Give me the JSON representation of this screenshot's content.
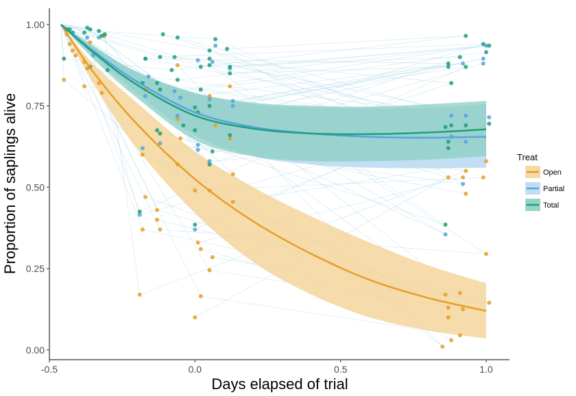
{
  "chart_data": {
    "type": "scatter",
    "title": "",
    "xlabel": "Days elapsed of trial",
    "ylabel": "Proportion of saplings alive",
    "xlim": [
      -0.5,
      1.08
    ],
    "ylim": [
      -0.03,
      1.05
    ],
    "x_ticks": [
      -0.5,
      0.0,
      0.5,
      1.0
    ],
    "x_tick_labels": [
      "-0.5",
      "0.0",
      "0.5",
      "1.0"
    ],
    "y_ticks": [
      0.0,
      0.25,
      0.5,
      0.75,
      1.0
    ],
    "y_tick_labels": [
      "0.00",
      "0.25",
      "0.50",
      "0.75",
      "1.00"
    ],
    "grid": false,
    "legend": {
      "title": "Treat",
      "position": "right",
      "entries": [
        "Open",
        "Partial",
        "Total"
      ]
    },
    "colors": {
      "Open": "#E69F25",
      "Partial": "#56A3E0",
      "Total": "#1E9E7A",
      "Open_band": "#F5D59C",
      "Partial_band": "#B9D9F2",
      "Total_band": "#8CCFC2",
      "trajectory": "#B7DCEB"
    },
    "series": [
      {
        "name": "Open",
        "fit_x": [
          -0.46,
          -0.35,
          -0.2,
          0.0,
          0.2,
          0.4,
          0.6,
          0.8,
          1.0
        ],
        "fit_y": [
          1.0,
          0.855,
          0.695,
          0.525,
          0.395,
          0.295,
          0.215,
          0.16,
          0.12
        ],
        "ci_lower": [
          1.0,
          0.82,
          0.62,
          0.42,
          0.27,
          0.17,
          0.1,
          0.06,
          0.035
        ],
        "ci_upper": [
          1.0,
          0.88,
          0.76,
          0.61,
          0.5,
          0.41,
          0.33,
          0.26,
          0.205
        ],
        "points": [
          {
            "x": -0.44,
            "y": 0.97
          },
          {
            "x": -0.43,
            "y": 0.94
          },
          {
            "x": -0.42,
            "y": 0.92
          },
          {
            "x": -0.41,
            "y": 0.905
          },
          {
            "x": -0.45,
            "y": 0.83
          },
          {
            "x": -0.38,
            "y": 0.885
          },
          {
            "x": -0.37,
            "y": 0.865
          },
          {
            "x": -0.38,
            "y": 0.81
          },
          {
            "x": -0.36,
            "y": 0.945
          },
          {
            "x": -0.33,
            "y": 0.82
          },
          {
            "x": -0.32,
            "y": 0.79
          },
          {
            "x": -0.31,
            "y": 0.965
          },
          {
            "x": -0.17,
            "y": 0.8
          },
          {
            "x": -0.18,
            "y": 0.6
          },
          {
            "x": -0.17,
            "y": 0.47
          },
          {
            "x": -0.18,
            "y": 0.37
          },
          {
            "x": -0.13,
            "y": 0.43
          },
          {
            "x": -0.13,
            "y": 0.4
          },
          {
            "x": -0.12,
            "y": 0.37
          },
          {
            "x": -0.19,
            "y": 0.17
          },
          {
            "x": -0.06,
            "y": 0.875
          },
          {
            "x": -0.06,
            "y": 0.71
          },
          {
            "x": -0.05,
            "y": 0.65
          },
          {
            "x": -0.06,
            "y": 0.57
          },
          {
            "x": 0.0,
            "y": 0.49
          },
          {
            "x": 0.01,
            "y": 0.33
          },
          {
            "x": 0.02,
            "y": 0.31
          },
          {
            "x": 0.02,
            "y": 0.165
          },
          {
            "x": 0.0,
            "y": 0.1
          },
          {
            "x": 0.05,
            "y": 0.49
          },
          {
            "x": 0.05,
            "y": 0.245
          },
          {
            "x": 0.06,
            "y": 0.285
          },
          {
            "x": 0.07,
            "y": 0.69
          },
          {
            "x": 0.05,
            "y": 0.78
          },
          {
            "x": 0.12,
            "y": 0.81
          },
          {
            "x": 0.12,
            "y": 0.65
          },
          {
            "x": 0.13,
            "y": 0.54
          },
          {
            "x": 0.13,
            "y": 0.455
          },
          {
            "x": 0.87,
            "y": 0.53
          },
          {
            "x": 0.92,
            "y": 0.53
          },
          {
            "x": 0.93,
            "y": 0.48
          },
          {
            "x": 0.93,
            "y": 0.55
          },
          {
            "x": 0.86,
            "y": 0.17
          },
          {
            "x": 0.87,
            "y": 0.13
          },
          {
            "x": 0.87,
            "y": 0.1
          },
          {
            "x": 0.88,
            "y": 0.03
          },
          {
            "x": 0.85,
            "y": 0.01
          },
          {
            "x": 0.91,
            "y": 0.175
          },
          {
            "x": 0.92,
            "y": 0.125
          },
          {
            "x": 0.91,
            "y": 0.045
          },
          {
            "x": 0.99,
            "y": 0.53
          },
          {
            "x": 1.0,
            "y": 0.58
          },
          {
            "x": 1.0,
            "y": 0.295
          },
          {
            "x": 1.01,
            "y": 0.145
          }
        ]
      },
      {
        "name": "Partial",
        "fit_x": [
          -0.46,
          -0.35,
          -0.2,
          0.0,
          0.2,
          0.4,
          0.6,
          0.8,
          1.0
        ],
        "fit_y": [
          1.0,
          0.92,
          0.825,
          0.73,
          0.685,
          0.665,
          0.655,
          0.652,
          0.655
        ],
        "ci_lower": [
          1.0,
          0.905,
          0.79,
          0.66,
          0.595,
          0.57,
          0.56,
          0.558,
          0.56
        ],
        "ci_upper": [
          1.0,
          0.935,
          0.855,
          0.79,
          0.755,
          0.745,
          0.742,
          0.745,
          0.755
        ],
        "points": [
          {
            "x": -0.44,
            "y": 0.985
          },
          {
            "x": -0.37,
            "y": 0.96
          },
          {
            "x": -0.33,
            "y": 0.96
          },
          {
            "x": -0.35,
            "y": 0.905
          },
          {
            "x": -0.17,
            "y": 0.895
          },
          {
            "x": -0.16,
            "y": 0.84
          },
          {
            "x": -0.17,
            "y": 0.78
          },
          {
            "x": -0.18,
            "y": 0.62
          },
          {
            "x": -0.19,
            "y": 0.415
          },
          {
            "x": -0.12,
            "y": 0.635
          },
          {
            "x": -0.07,
            "y": 0.795
          },
          {
            "x": -0.05,
            "y": 0.775
          },
          {
            "x": -0.06,
            "y": 0.72
          },
          {
            "x": 0.01,
            "y": 0.89
          },
          {
            "x": 0.01,
            "y": 0.63
          },
          {
            "x": 0.01,
            "y": 0.615
          },
          {
            "x": 0.0,
            "y": 0.37
          },
          {
            "x": 0.05,
            "y": 0.77
          },
          {
            "x": 0.05,
            "y": 0.58
          },
          {
            "x": 0.06,
            "y": 0.885
          },
          {
            "x": 0.07,
            "y": 0.935
          },
          {
            "x": 0.12,
            "y": 0.865
          },
          {
            "x": 0.13,
            "y": 0.765
          },
          {
            "x": 0.13,
            "y": 0.75
          },
          {
            "x": 0.86,
            "y": 0.355
          },
          {
            "x": 0.88,
            "y": 0.72
          },
          {
            "x": 0.88,
            "y": 0.655
          },
          {
            "x": 0.92,
            "y": 0.88
          },
          {
            "x": 0.92,
            "y": 0.51
          },
          {
            "x": 0.93,
            "y": 0.64
          },
          {
            "x": 0.93,
            "y": 0.72
          },
          {
            "x": 0.99,
            "y": 0.88
          },
          {
            "x": 0.99,
            "y": 0.895
          },
          {
            "x": 1.0,
            "y": 0.935
          },
          {
            "x": 1.01,
            "y": 0.715
          }
        ]
      },
      {
        "name": "Total",
        "fit_x": [
          -0.46,
          -0.35,
          -0.2,
          0.0,
          0.2,
          0.4,
          0.6,
          0.8,
          1.0
        ],
        "fit_y": [
          1.0,
          0.915,
          0.815,
          0.72,
          0.68,
          0.665,
          0.663,
          0.668,
          0.678
        ],
        "ci_lower": [
          1.0,
          0.895,
          0.775,
          0.645,
          0.595,
          0.58,
          0.58,
          0.585,
          0.595
        ],
        "ci_upper": [
          1.0,
          0.935,
          0.855,
          0.79,
          0.76,
          0.75,
          0.748,
          0.755,
          0.765
        ],
        "points": [
          {
            "x": -0.44,
            "y": 0.985
          },
          {
            "x": -0.43,
            "y": 0.985
          },
          {
            "x": -0.42,
            "y": 0.975
          },
          {
            "x": -0.45,
            "y": 0.895
          },
          {
            "x": -0.38,
            "y": 0.975
          },
          {
            "x": -0.37,
            "y": 0.99
          },
          {
            "x": -0.36,
            "y": 0.985
          },
          {
            "x": -0.33,
            "y": 0.98
          },
          {
            "x": -0.32,
            "y": 0.965
          },
          {
            "x": -0.31,
            "y": 0.97
          },
          {
            "x": -0.3,
            "y": 0.86
          },
          {
            "x": -0.36,
            "y": 0.87
          },
          {
            "x": -0.17,
            "y": 0.895
          },
          {
            "x": -0.18,
            "y": 0.82
          },
          {
            "x": -0.12,
            "y": 0.9
          },
          {
            "x": -0.11,
            "y": 0.97
          },
          {
            "x": -0.12,
            "y": 0.8
          },
          {
            "x": -0.13,
            "y": 0.82
          },
          {
            "x": -0.13,
            "y": 0.675
          },
          {
            "x": -0.12,
            "y": 0.665
          },
          {
            "x": -0.19,
            "y": 0.425
          },
          {
            "x": -0.06,
            "y": 0.96
          },
          {
            "x": -0.07,
            "y": 0.9
          },
          {
            "x": -0.08,
            "y": 0.86
          },
          {
            "x": -0.06,
            "y": 0.83
          },
          {
            "x": -0.04,
            "y": 0.69
          },
          {
            "x": 0.02,
            "y": 0.87
          },
          {
            "x": 0.02,
            "y": 0.8
          },
          {
            "x": 0.0,
            "y": 0.745
          },
          {
            "x": 0.01,
            "y": 0.73
          },
          {
            "x": 0.0,
            "y": 0.675
          },
          {
            "x": 0.0,
            "y": 0.385
          },
          {
            "x": 0.05,
            "y": 0.92
          },
          {
            "x": 0.05,
            "y": 0.895
          },
          {
            "x": 0.05,
            "y": 0.875
          },
          {
            "x": 0.07,
            "y": 0.955
          },
          {
            "x": 0.05,
            "y": 0.75
          },
          {
            "x": 0.06,
            "y": 0.61
          },
          {
            "x": 0.05,
            "y": 0.57
          },
          {
            "x": 0.11,
            "y": 0.925
          },
          {
            "x": 0.12,
            "y": 0.87
          },
          {
            "x": 0.12,
            "y": 0.85
          },
          {
            "x": 0.12,
            "y": 0.66
          },
          {
            "x": 0.86,
            "y": 0.385
          },
          {
            "x": 0.86,
            "y": 0.685
          },
          {
            "x": 0.87,
            "y": 0.88
          },
          {
            "x": 0.87,
            "y": 0.87
          },
          {
            "x": 0.88,
            "y": 0.82
          },
          {
            "x": 0.87,
            "y": 0.64
          },
          {
            "x": 0.87,
            "y": 0.62
          },
          {
            "x": 0.88,
            "y": 0.69
          },
          {
            "x": 0.91,
            "y": 0.9
          },
          {
            "x": 0.93,
            "y": 0.965
          },
          {
            "x": 0.93,
            "y": 0.87
          },
          {
            "x": 0.93,
            "y": 0.69
          },
          {
            "x": 0.99,
            "y": 0.94
          },
          {
            "x": 1.0,
            "y": 0.915
          },
          {
            "x": 1.01,
            "y": 0.935
          },
          {
            "x": 1.01,
            "y": 0.695
          }
        ]
      }
    ]
  }
}
